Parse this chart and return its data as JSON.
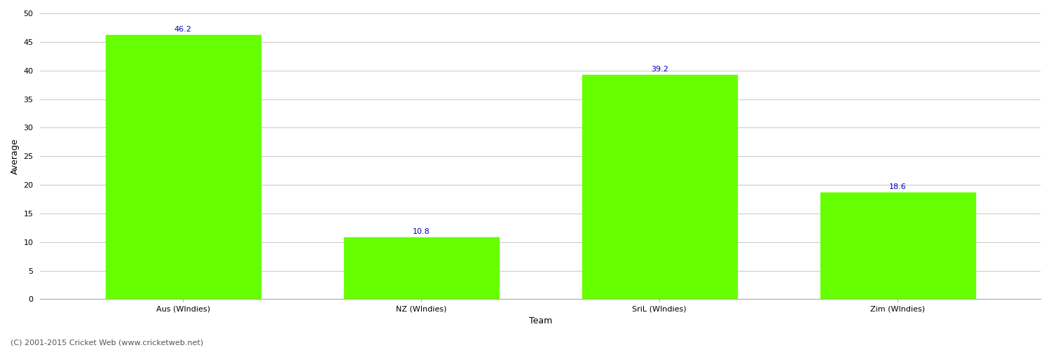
{
  "categories": [
    "Aus (WIndies)",
    "NZ (WIndies)",
    "SriL (WIndies)",
    "Zim (WIndies)"
  ],
  "values": [
    46.2,
    10.8,
    39.2,
    18.6
  ],
  "bar_color": "#66ff00",
  "bar_edge_color": "#66ff00",
  "label_color": "#0000bb",
  "xlabel": "Team",
  "ylabel": "Average",
  "ylim": [
    0,
    50
  ],
  "yticks": [
    0,
    5,
    10,
    15,
    20,
    25,
    30,
    35,
    40,
    45,
    50
  ],
  "background_color": "#ffffff",
  "grid_color": "#cccccc",
  "label_fontsize": 8,
  "axis_label_fontsize": 9,
  "tick_fontsize": 8,
  "footer_text": "(C) 2001-2015 Cricket Web (www.cricketweb.net)",
  "footer_fontsize": 8,
  "footer_color": "#555555",
  "bar_width": 0.65,
  "x_positions": [
    0,
    1,
    2,
    3
  ],
  "xlim": [
    -0.6,
    3.6
  ]
}
